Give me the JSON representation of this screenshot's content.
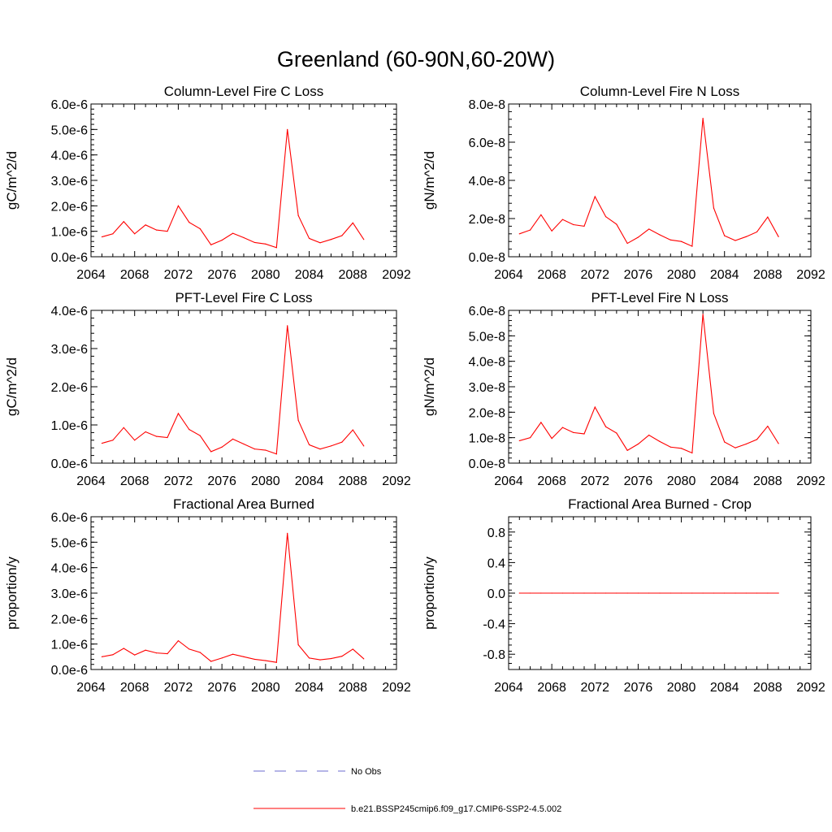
{
  "figure": {
    "title": "Greenland (60-90N,60-20W)",
    "colors": {
      "model": "#ff0000",
      "obs": "#6b6bcf",
      "axis": "#000000"
    }
  },
  "legend": {
    "placement": "bottom-center",
    "entries": [
      {
        "label": "No Obs",
        "style": "dashed",
        "color": "#6b6bcf"
      },
      {
        "label": "b.e21.BSSP245cmip6.f09_g17.CMIP6-SSP2-4.5.002",
        "style": "solid",
        "color": "#ff0000"
      }
    ]
  },
  "chart_data": [
    {
      "type": "line",
      "title": "Column-Level Fire C Loss",
      "ylabel": "gC/m^2/d",
      "xlim": [
        2064,
        2092
      ],
      "xticks": [
        2064,
        2068,
        2072,
        2076,
        2080,
        2084,
        2088,
        2092
      ],
      "ylim": [
        0,
        6e-06
      ],
      "yticks": [
        0,
        1e-06,
        2e-06,
        3e-06,
        4e-06,
        5e-06,
        6e-06
      ],
      "ytick_labels": [
        "0.0e-6",
        "1.0e-6",
        "2.0e-6",
        "3.0e-6",
        "4.0e-6",
        "5.0e-6",
        "6.0e-6"
      ],
      "x": [
        2065,
        2066,
        2067,
        2068,
        2069,
        2070,
        2071,
        2072,
        2073,
        2074,
        2075,
        2076,
        2077,
        2078,
        2079,
        2080,
        2081,
        2082,
        2083,
        2084,
        2085,
        2086,
        2087,
        2088,
        2089
      ],
      "series": [
        {
          "name": "b.e21.BSSP245cmip6.f09_g17.CMIP6-SSP2-4.5.002",
          "values": [
            7.8e-07,
            9e-07,
            1.38e-06,
            9e-07,
            1.25e-06,
            1.05e-06,
            1e-06,
            2e-06,
            1.35e-06,
            1.1e-06,
            4.7e-07,
            6.5e-07,
            9.2e-07,
            7.5e-07,
            5.6e-07,
            5e-07,
            3.6e-07,
            5e-06,
            1.62e-06,
            7.2e-07,
            5.5e-07,
            6.8e-07,
            8.3e-07,
            1.33e-06,
            6.8e-07
          ]
        }
      ]
    },
    {
      "type": "line",
      "title": "Column-Level Fire N Loss",
      "ylabel": "gN/m^2/d",
      "xlim": [
        2064,
        2092
      ],
      "xticks": [
        2064,
        2068,
        2072,
        2076,
        2080,
        2084,
        2088,
        2092
      ],
      "ylim": [
        0,
        8e-08
      ],
      "yticks": [
        0,
        2e-08,
        4e-08,
        6e-08,
        8e-08
      ],
      "ytick_labels": [
        "0.0e-8",
        "2.0e-8",
        "4.0e-8",
        "6.0e-8",
        "8.0e-8"
      ],
      "x": [
        2065,
        2066,
        2067,
        2068,
        2069,
        2070,
        2071,
        2072,
        2073,
        2074,
        2075,
        2076,
        2077,
        2078,
        2079,
        2080,
        2081,
        2082,
        2083,
        2084,
        2085,
        2086,
        2087,
        2088,
        2089
      ],
      "series": [
        {
          "name": "b.e21.BSSP245cmip6.f09_g17.CMIP6-SSP2-4.5.002",
          "values": [
            1.2e-08,
            1.4e-08,
            2.2e-08,
            1.35e-08,
            1.95e-08,
            1.68e-08,
            1.6e-08,
            3.15e-08,
            2.1e-08,
            1.7e-08,
            7e-09,
            1.02e-08,
            1.45e-08,
            1.15e-08,
            8.8e-09,
            8e-09,
            5.5e-09,
            7.25e-08,
            2.55e-08,
            1.1e-08,
            8.5e-09,
            1.05e-08,
            1.3e-08,
            2.08e-08,
            1.05e-08
          ]
        }
      ]
    },
    {
      "type": "line",
      "title": "PFT-Level Fire C Loss",
      "ylabel": "gC/m^2/d",
      "xlim": [
        2064,
        2092
      ],
      "xticks": [
        2064,
        2068,
        2072,
        2076,
        2080,
        2084,
        2088,
        2092
      ],
      "ylim": [
        0,
        4e-06
      ],
      "yticks": [
        0,
        1e-06,
        2e-06,
        3e-06,
        4e-06
      ],
      "ytick_labels": [
        "0.0e-6",
        "1.0e-6",
        "2.0e-6",
        "3.0e-6",
        "4.0e-6"
      ],
      "x": [
        2065,
        2066,
        2067,
        2068,
        2069,
        2070,
        2071,
        2072,
        2073,
        2074,
        2075,
        2076,
        2077,
        2078,
        2079,
        2080,
        2081,
        2082,
        2083,
        2084,
        2085,
        2086,
        2087,
        2088,
        2089
      ],
      "series": [
        {
          "name": "b.e21.BSSP245cmip6.f09_g17.CMIP6-SSP2-4.5.002",
          "values": [
            5.2e-07,
            6e-07,
            9.3e-07,
            6e-07,
            8.2e-07,
            7e-07,
            6.7e-07,
            1.3e-06,
            8.8e-07,
            7.2e-07,
            3e-07,
            4.2e-07,
            6.3e-07,
            5e-07,
            3.7e-07,
            3.4e-07,
            2.4e-07,
            3.6e-06,
            1.12e-06,
            4.8e-07,
            3.7e-07,
            4.5e-07,
            5.5e-07,
            8.7e-07,
            4.5e-07
          ]
        }
      ]
    },
    {
      "type": "line",
      "title": "PFT-Level Fire N Loss",
      "ylabel": "gN/m^2/d",
      "xlim": [
        2064,
        2092
      ],
      "xticks": [
        2064,
        2068,
        2072,
        2076,
        2080,
        2084,
        2088,
        2092
      ],
      "ylim": [
        0,
        6e-08
      ],
      "yticks": [
        0,
        1e-08,
        2e-08,
        3e-08,
        4e-08,
        5e-08,
        6e-08
      ],
      "ytick_labels": [
        "0.0e-8",
        "1.0e-8",
        "2.0e-8",
        "3.0e-8",
        "4.0e-8",
        "5.0e-8",
        "6.0e-8"
      ],
      "x": [
        2065,
        2066,
        2067,
        2068,
        2069,
        2070,
        2071,
        2072,
        2073,
        2074,
        2075,
        2076,
        2077,
        2078,
        2079,
        2080,
        2081,
        2082,
        2083,
        2084,
        2085,
        2086,
        2087,
        2088,
        2089
      ],
      "series": [
        {
          "name": "b.e21.BSSP245cmip6.f09_g17.CMIP6-SSP2-4.5.002",
          "values": [
            8.8e-09,
            1e-08,
            1.6e-08,
            9.7e-09,
            1.4e-08,
            1.2e-08,
            1.15e-08,
            2.2e-08,
            1.43e-08,
            1.18e-08,
            5e-09,
            7.5e-09,
            1.1e-08,
            8.5e-09,
            6.3e-09,
            5.8e-09,
            4e-09,
            5.85e-08,
            1.95e-08,
            8.3e-09,
            6e-09,
            7.5e-09,
            9.3e-09,
            1.45e-08,
            7.7e-09
          ]
        }
      ]
    },
    {
      "type": "line",
      "title": "Fractional Area Burned",
      "ylabel": "proportion/y",
      "xlim": [
        2064,
        2092
      ],
      "xticks": [
        2064,
        2068,
        2072,
        2076,
        2080,
        2084,
        2088,
        2092
      ],
      "ylim": [
        0,
        6e-06
      ],
      "yticks": [
        0,
        1e-06,
        2e-06,
        3e-06,
        4e-06,
        5e-06,
        6e-06
      ],
      "ytick_labels": [
        "0.0e-6",
        "1.0e-6",
        "2.0e-6",
        "3.0e-6",
        "4.0e-6",
        "5.0e-6",
        "6.0e-6"
      ],
      "x": [
        2065,
        2066,
        2067,
        2068,
        2069,
        2070,
        2071,
        2072,
        2073,
        2074,
        2075,
        2076,
        2077,
        2078,
        2079,
        2080,
        2081,
        2082,
        2083,
        2084,
        2085,
        2086,
        2087,
        2088,
        2089
      ],
      "series": [
        {
          "name": "b.e21.BSSP245cmip6.f09_g17.CMIP6-SSP2-4.5.002",
          "values": [
            5e-07,
            5.8e-07,
            8.3e-07,
            5.7e-07,
            7.6e-07,
            6.5e-07,
            6.2e-07,
            1.13e-06,
            8e-07,
            6.7e-07,
            3.2e-07,
            4.5e-07,
            6e-07,
            5e-07,
            4e-07,
            3.5e-07,
            2.8e-07,
            5.35e-06,
            9.7e-07,
            4.5e-07,
            3.8e-07,
            4.3e-07,
            5.2e-07,
            8e-07,
            4.2e-07
          ]
        }
      ]
    },
    {
      "type": "line",
      "title": "Fractional Area Burned - Crop",
      "ylabel": "proportion/y",
      "xlim": [
        2064,
        2092
      ],
      "xticks": [
        2064,
        2068,
        2072,
        2076,
        2080,
        2084,
        2088,
        2092
      ],
      "ylim": [
        -1.0,
        1.0
      ],
      "yticks": [
        -0.8,
        -0.4,
        0.0,
        0.4,
        0.8
      ],
      "ytick_labels": [
        "-0.8",
        "-0.4",
        "0.0",
        "0.4",
        "0.8"
      ],
      "x": [
        2065,
        2066,
        2067,
        2068,
        2069,
        2070,
        2071,
        2072,
        2073,
        2074,
        2075,
        2076,
        2077,
        2078,
        2079,
        2080,
        2081,
        2082,
        2083,
        2084,
        2085,
        2086,
        2087,
        2088,
        2089
      ],
      "series": [
        {
          "name": "b.e21.BSSP245cmip6.f09_g17.CMIP6-SSP2-4.5.002",
          "values": [
            0,
            0,
            0,
            0,
            0,
            0,
            0,
            0,
            0,
            0,
            0,
            0,
            0,
            0,
            0,
            0,
            0,
            0,
            0,
            0,
            0,
            0,
            0,
            0,
            0
          ]
        }
      ]
    }
  ]
}
